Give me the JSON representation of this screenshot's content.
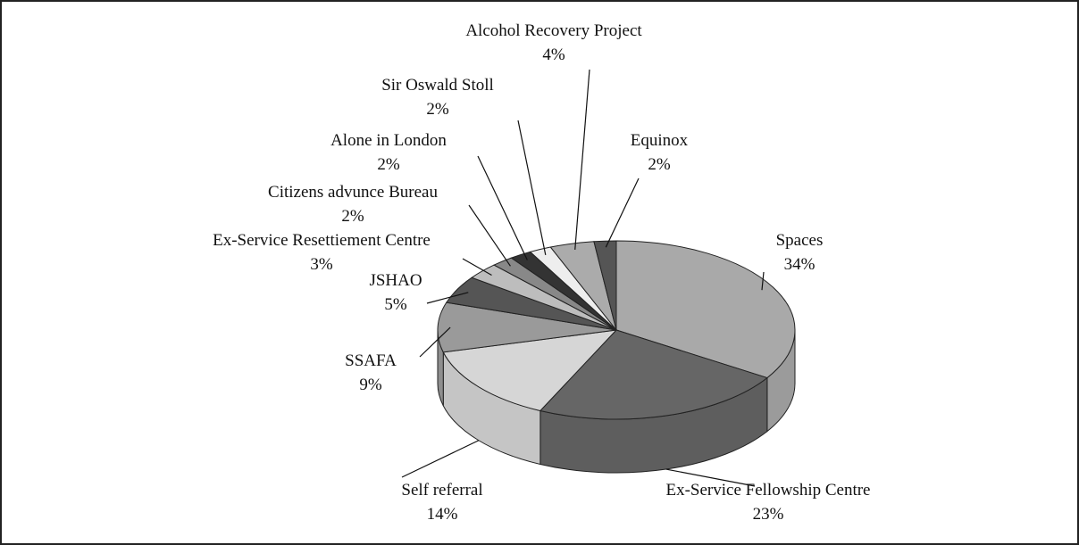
{
  "chart_data": {
    "type": "pie",
    "categories": [
      "Spaces",
      "Ex-Service Fellowship Centre",
      "Self referral",
      "SSAFA",
      "JSHAO",
      "Ex-Service Resettiement Centre",
      "Citizens advunce Bureau",
      "Alone in London",
      "Sir Oswald Stoll",
      "Alcohol Recovery Project",
      "Equinox"
    ],
    "values": [
      34,
      23,
      14,
      9,
      5,
      3,
      2,
      2,
      2,
      4,
      2
    ],
    "value_labels": [
      "34%",
      "23%",
      "14%",
      "9%",
      "5%",
      "3%",
      "2%",
      "2%",
      "2%",
      "4%",
      "2%"
    ],
    "colors": [
      "#a9a9a9",
      "#666666",
      "#d6d6d6",
      "#9a9a9a",
      "#555555",
      "#bdbdbd",
      "#888888",
      "#333333",
      "#eeeeee",
      "#ababab",
      "#555555"
    ]
  }
}
